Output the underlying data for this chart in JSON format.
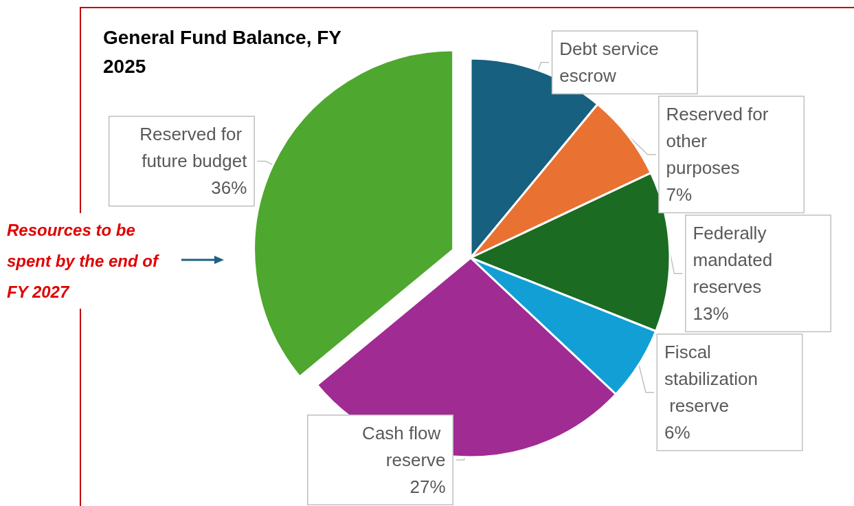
{
  "chart_data": {
    "type": "pie",
    "title": "General Fund Balance, FY 2025",
    "categories": [
      "Debt service escrow",
      "Reserved for other purposes",
      "Federally mandated reserves",
      "Fiscal stabilization reserve",
      "Cash flow reserve",
      "Reserved for future budget"
    ],
    "values": [
      11,
      7,
      13,
      6,
      27,
      36
    ],
    "value_labels": [
      null,
      "7%",
      "13%",
      "6%",
      "27%",
      "36%"
    ],
    "colors": [
      "#17607f",
      "#e97132",
      "#1b6b23",
      "#119fd6",
      "#a02b93",
      "#4ea72e"
    ],
    "annotations": [
      {
        "text": "Resources to be spent by the end of FY 2027",
        "x": "Reserved for future budget"
      }
    ],
    "legend": false
  }
}
